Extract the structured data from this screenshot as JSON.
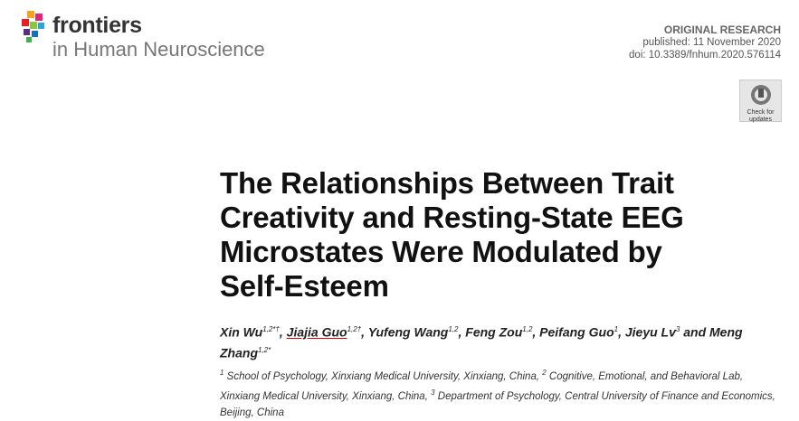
{
  "header": {
    "journal_brand": "frontiers",
    "journal_name": "in Human Neuroscience",
    "article_type": "ORIGINAL RESEARCH",
    "published": "published: 11 November 2020",
    "doi": "doi: 10.3389/fnhum.2020.576114",
    "badge_line1": "Check for",
    "badge_line2": "updates"
  },
  "title_lines": [
    "The Relationships Between Trait",
    "Creativity and Resting-State EEG",
    "Microstates Were Modulated by",
    "Self-Esteem"
  ],
  "authors": [
    {
      "name": "Xin Wu",
      "sup": "1,2*†",
      "suffix": ","
    },
    {
      "name": "Jiajia Guo",
      "sup": "1,2†",
      "suffix": ","
    },
    {
      "name": "Yufeng Wang",
      "sup": "1,2",
      "suffix": ","
    },
    {
      "name": "Feng Zou",
      "sup": "1,2",
      "suffix": ","
    },
    {
      "name": "Peifang Guo",
      "sup": "1",
      "suffix": ","
    },
    {
      "name": "Jieyu Lv",
      "sup": "3",
      "suffix": " and"
    },
    {
      "name": "Meng Zhang",
      "sup": "1,2*"
    }
  ],
  "affiliations": [
    {
      "sup": "1",
      "text": "School of Psychology, Xinxiang Medical University, Xinxiang, China,"
    },
    {
      "sup": "2",
      "text": "Cognitive, Emotional, and Behavioral Lab, Xinxiang Medical University, Xinxiang, China,"
    },
    {
      "sup": "3",
      "text": "Department of Psychology, Central University of Finance and Economics, Beijing, China"
    }
  ]
}
